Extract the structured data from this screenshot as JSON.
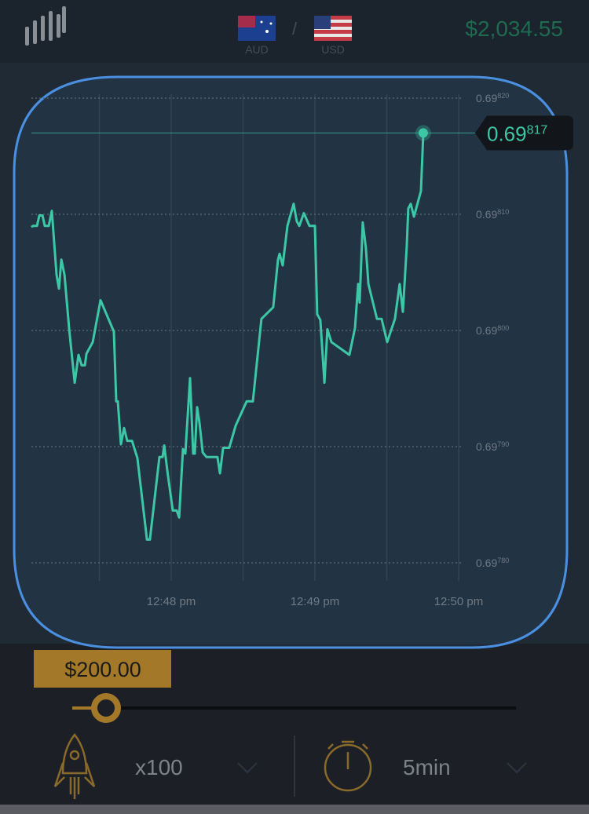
{
  "header": {
    "balance": "$2,034.55",
    "base": "AUD",
    "separator": "/",
    "quote": "USD"
  },
  "chart_data": {
    "type": "line",
    "color": "#3cc8a6",
    "x": [
      47.027,
      47.038,
      47.066,
      47.082,
      47.104,
      47.12,
      47.148,
      47.169,
      47.202,
      47.219,
      47.235,
      47.257,
      47.29,
      47.328,
      47.355,
      47.377,
      47.399,
      47.41,
      47.454,
      47.508,
      47.601,
      47.617,
      47.628,
      47.65,
      47.672,
      47.694,
      47.727,
      47.765,
      47.831,
      47.852,
      47.918,
      47.94,
      47.951,
      47.973,
      48.011,
      48.038,
      48.055,
      48.082,
      48.098,
      48.131,
      48.153,
      48.164,
      48.18,
      48.197,
      48.219,
      48.246,
      48.322,
      48.339,
      48.361,
      48.404,
      48.448,
      48.525,
      48.568,
      48.628,
      48.71,
      48.743,
      48.754,
      48.776,
      48.809,
      48.852,
      48.874,
      48.891,
      48.923,
      48.962,
      49.0,
      49.016,
      49.038,
      49.066,
      49.087,
      49.115,
      49.24,
      49.279,
      49.301,
      49.311,
      49.333,
      49.355,
      49.372,
      49.432,
      49.464,
      49.503,
      49.557,
      49.59,
      49.612,
      49.639,
      49.65,
      49.667,
      49.689,
      49.738,
      49.754
    ],
    "values": [
      0.698089,
      0.69809,
      0.69809,
      0.698099,
      0.698099,
      0.69809,
      0.69809,
      0.698103,
      0.698048,
      0.698036,
      0.698061,
      0.698048,
      0.698001,
      0.697955,
      0.697979,
      0.69797,
      0.69797,
      0.69798,
      0.69799,
      0.698026,
      0.697999,
      0.697939,
      0.697939,
      0.697902,
      0.697916,
      0.697905,
      0.697905,
      0.69789,
      0.69782,
      0.69782,
      0.697891,
      0.697891,
      0.697901,
      0.697879,
      0.697845,
      0.697845,
      0.697839,
      0.697898,
      0.697894,
      0.697959,
      0.697894,
      0.697894,
      0.697934,
      0.69792,
      0.697895,
      0.697891,
      0.697891,
      0.697877,
      0.697899,
      0.697899,
      0.697918,
      0.697939,
      0.697939,
      0.69801,
      0.69802,
      0.698061,
      0.698066,
      0.698056,
      0.69809,
      0.698109,
      0.698094,
      0.69809,
      0.698101,
      0.69809,
      0.69809,
      0.698014,
      0.698009,
      0.697955,
      0.698001,
      0.69799,
      0.697979,
      0.698002,
      0.69804,
      0.698024,
      0.698093,
      0.698071,
      0.69804,
      0.69801,
      0.69801,
      0.69799,
      0.69801,
      0.69804,
      0.698016,
      0.698072,
      0.698105,
      0.698109,
      0.698098,
      0.69812,
      0.69817
    ],
    "xlim": [
      47.027,
      50.033
    ],
    "xticks": [
      {
        "value": 48,
        "label": "12:48 pm"
      },
      {
        "value": 49,
        "label": "12:49 pm"
      },
      {
        "value": 50,
        "label": "12:50 pm"
      }
    ],
    "xminor": [
      47.5,
      48.5,
      49.5
    ],
    "ylim": [
      0.6978,
      0.6982
    ],
    "yticks": [
      {
        "value": 0.6978,
        "label": "0.69780"
      },
      {
        "value": 0.6979,
        "label": "0.69790"
      },
      {
        "value": 0.698,
        "label": "0.69800"
      },
      {
        "value": 0.6981,
        "label": "0.69810"
      },
      {
        "value": 0.6982,
        "label": "0.69820"
      }
    ],
    "grid": true,
    "current_price": {
      "value": 0.69817,
      "label": "0.69817"
    }
  },
  "controls": {
    "amount": "$200.00",
    "multiplier": "x100",
    "duration": "5min"
  }
}
